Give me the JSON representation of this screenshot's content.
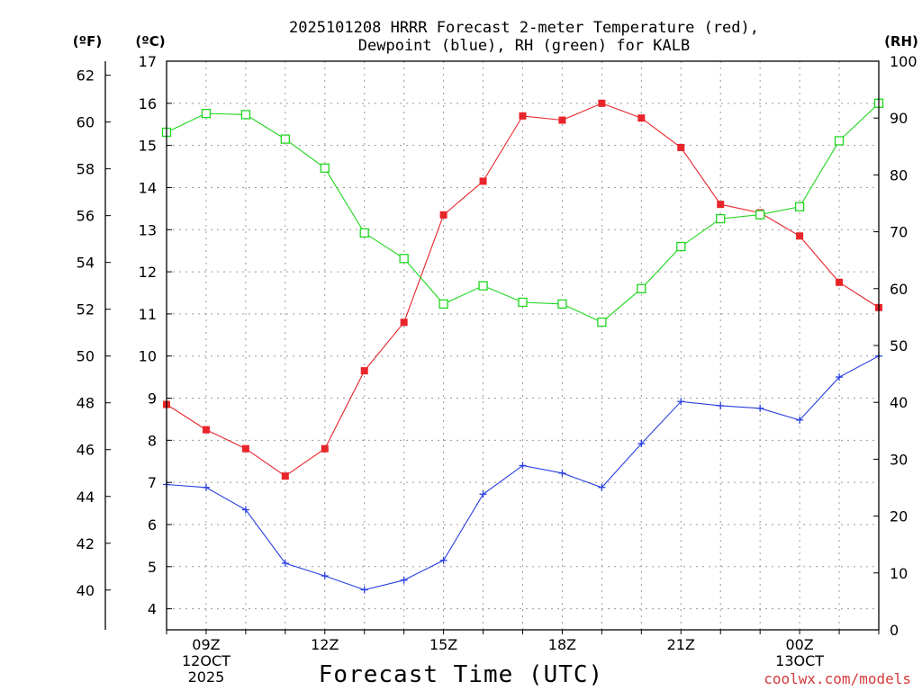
{
  "title_lines": [
    "2025101208 HRRR Forecast 2-meter Temperature (red),",
    "Dewpoint (blue), RH (green) for KALB"
  ],
  "axis_units": {
    "fahrenheit": "(ºF)",
    "celsius": "(ºC)",
    "rh": "(RH)"
  },
  "xlabel": "Forecast Time (UTC)",
  "credit": "coolwx.com/models",
  "chart_data": {
    "type": "line",
    "title": "2025101208 HRRR Forecast 2-meter Temperature (red), Dewpoint (blue), RH (green) for KALB",
    "xlabel": "Forecast Time (UTC)",
    "x_hours": [
      8,
      9,
      10,
      11,
      12,
      13,
      14,
      15,
      16,
      17,
      18,
      19,
      20,
      21,
      22,
      23,
      24,
      25,
      26
    ],
    "x_ticks": [
      {
        "hour": 9,
        "lines": [
          "09Z",
          "12OCT",
          "2025"
        ]
      },
      {
        "hour": 12,
        "lines": [
          "12Z"
        ]
      },
      {
        "hour": 15,
        "lines": [
          "15Z"
        ]
      },
      {
        "hour": 18,
        "lines": [
          "18Z"
        ]
      },
      {
        "hour": 21,
        "lines": [
          "21Z"
        ]
      },
      {
        "hour": 24,
        "lines": [
          "00Z",
          "13OCT"
        ]
      }
    ],
    "xlim": [
      8,
      26
    ],
    "y_celsius": {
      "label": "(ºC)",
      "ylim": [
        3.5,
        17
      ],
      "ticks": [
        4,
        5,
        6,
        7,
        8,
        9,
        10,
        11,
        12,
        13,
        14,
        15,
        16,
        17
      ]
    },
    "y_fahrenheit": {
      "label": "(ºF)",
      "ticks": [
        40,
        42,
        44,
        46,
        48,
        50,
        52,
        54,
        56,
        58,
        60,
        62
      ]
    },
    "y_rh": {
      "label": "(RH)",
      "ylim": [
        0,
        100
      ],
      "ticks": [
        0,
        10,
        20,
        30,
        40,
        50,
        60,
        70,
        80,
        90,
        100
      ]
    },
    "grid": true,
    "series": [
      {
        "name": "Temperature",
        "color": "#e8252a",
        "marker": "filled-square",
        "axis": "celsius",
        "values": [
          8.85,
          8.25,
          7.8,
          7.15,
          7.8,
          9.65,
          10.8,
          13.35,
          14.15,
          15.7,
          15.6,
          16.0,
          15.65,
          14.95,
          13.6,
          13.4,
          12.85,
          11.75,
          11.15
        ]
      },
      {
        "name": "Dewpoint",
        "color": "#2a3fe0",
        "marker": "plus",
        "axis": "celsius",
        "values": [
          6.95,
          6.88,
          6.35,
          5.08,
          4.78,
          4.45,
          4.68,
          5.15,
          6.72,
          7.4,
          7.22,
          6.88,
          7.92,
          8.92,
          8.82,
          8.76,
          8.48,
          9.5,
          10.0
        ]
      },
      {
        "name": "Relative Humidity",
        "color": "#1fd61f",
        "marker": "open-square",
        "axis": "rh",
        "values": [
          87.5,
          90.8,
          90.6,
          86.3,
          81.2,
          69.8,
          65.3,
          57.3,
          60.5,
          57.6,
          57.3,
          54.1,
          60.0,
          67.4,
          72.3,
          73.0,
          74.4,
          86.0,
          92.6
        ]
      }
    ]
  }
}
